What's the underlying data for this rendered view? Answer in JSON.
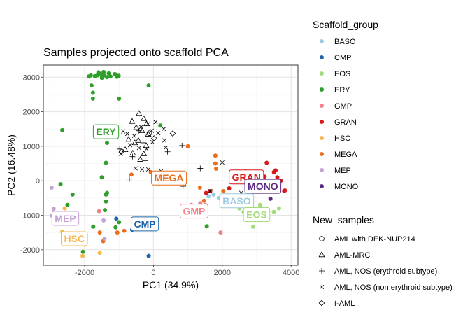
{
  "chart_data": {
    "type": "scatter",
    "title": "Samples projected onto scaffold PCA",
    "xlabel": "PC1 (34.9%)",
    "ylabel": "PC2 (16.48%)",
    "xlim": [
      -3200,
      4200
    ],
    "ylim": [
      -2450,
      3350
    ],
    "xticks": [
      -2000,
      0,
      2000,
      4000
    ],
    "yticks": [
      -2000,
      -1000,
      0,
      1000,
      2000,
      3000
    ],
    "xtick_labels": [
      "-2000",
      "0",
      "2000",
      "4000"
    ],
    "ytick_labels": [
      "-2000",
      "-1000",
      "0",
      "1000",
      "2000",
      "3000"
    ],
    "grid": true,
    "legend_placement": "right",
    "scaffold_legend_title": "Scaffold_group",
    "scaffold_groups": [
      {
        "name": "BASO",
        "color": "#9ecae1",
        "points": [
          [
            1600,
            -450
          ],
          [
            1750,
            -400
          ],
          [
            1900,
            -500
          ],
          [
            2050,
            -550
          ],
          [
            2200,
            -600
          ],
          [
            2600,
            -500
          ]
        ]
      },
      {
        "name": "CMP",
        "color": "#1f64a8",
        "points": [
          [
            -1080,
            -1100
          ],
          [
            -620,
            -1420
          ],
          [
            -140,
            -2180
          ],
          [
            -330,
            -1300
          ]
        ]
      },
      {
        "name": "EOS",
        "color": "#a5dc7a",
        "points": [
          [
            2500,
            -800
          ],
          [
            2620,
            -900
          ],
          [
            2900,
            -1330
          ],
          [
            3100,
            -700
          ],
          [
            3300,
            -850
          ],
          [
            3650,
            -800
          ],
          [
            3500,
            -900
          ]
        ]
      },
      {
        "name": "ERY",
        "color": "#2f9e2b",
        "points": [
          [
            -1880,
            3020
          ],
          [
            -1820,
            3050
          ],
          [
            -1700,
            3030
          ],
          [
            -1620,
            3060
          ],
          [
            -1500,
            3050
          ],
          [
            -1350,
            3000
          ],
          [
            -1250,
            3020
          ],
          [
            -1120,
            3090
          ],
          [
            -1060,
            3010
          ],
          [
            -1010,
            3040
          ],
          [
            -1300,
            3110
          ],
          [
            -1600,
            3140
          ],
          [
            -1450,
            3150
          ],
          [
            -1550,
            3090
          ],
          [
            -1430,
            3050
          ],
          [
            -1500,
            2980
          ],
          [
            -1800,
            2760
          ],
          [
            -1760,
            2550
          ],
          [
            -1760,
            2380
          ],
          [
            -1000,
            2380
          ],
          [
            -140,
            2760
          ],
          [
            -2650,
            1470
          ],
          [
            -1400,
            1300
          ],
          [
            -1350,
            1100
          ],
          [
            -1380,
            520
          ],
          [
            -1500,
            100
          ],
          [
            -1350,
            -350
          ],
          [
            -1380,
            -400
          ],
          [
            -1380,
            -600
          ],
          [
            -1410,
            -850
          ],
          [
            -2700,
            -100
          ],
          [
            -2350,
            -400
          ],
          [
            -2500,
            -700
          ],
          [
            -2650,
            -950
          ],
          [
            -1750,
            -1330
          ],
          [
            -2050,
            -2060
          ],
          [
            -2000,
            -1850
          ],
          [
            -1100,
            -1350
          ],
          [
            -1000,
            -1200
          ],
          [
            1550,
            -1320
          ],
          [
            200,
            1600
          ]
        ]
      },
      {
        "name": "GMP",
        "color": "#f2808a",
        "points": [
          [
            1360,
            -650
          ],
          [
            1500,
            -700
          ],
          [
            1950,
            -1500
          ],
          [
            -1580,
            -880
          ],
          [
            1100,
            -700
          ]
        ]
      },
      {
        "name": "GRAN",
        "color": "#d7191c",
        "points": [
          [
            1530,
            -350
          ],
          [
            1650,
            -300
          ],
          [
            2200,
            -220
          ],
          [
            3230,
            120
          ],
          [
            3290,
            520
          ],
          [
            3500,
            250
          ],
          [
            3600,
            100
          ],
          [
            3700,
            0
          ],
          [
            3820,
            -280
          ],
          [
            3450,
            -250
          ],
          [
            3250,
            -150
          ],
          [
            2900,
            -100
          ],
          [
            3800,
            -300
          ],
          [
            3550,
            300
          ]
        ]
      },
      {
        "name": "HSC",
        "color": "#f7b750",
        "points": [
          [
            -2580,
            -800
          ],
          [
            -2800,
            -930
          ],
          [
            -2360,
            -1150
          ],
          [
            -2450,
            -1520
          ],
          [
            -2650,
            -1480
          ],
          [
            -1560,
            -2090
          ],
          [
            -2060,
            -2180
          ],
          [
            -2360,
            -1730
          ]
        ]
      },
      {
        "name": "MEGA",
        "color": "#ec6e1c",
        "points": [
          [
            -640,
            180
          ],
          [
            -80,
            250
          ],
          [
            430,
            160
          ],
          [
            1000,
            1000
          ],
          [
            1800,
            730
          ],
          [
            1800,
            500
          ],
          [
            1820,
            350
          ],
          [
            1350,
            -200
          ],
          [
            -1560,
            -1500
          ],
          [
            -1460,
            -1750
          ],
          [
            -1050,
            -1500
          ],
          [
            -500,
            -1100
          ],
          [
            -850,
            -1450
          ],
          [
            1470,
            -580
          ],
          [
            2030,
            -300
          ]
        ]
      },
      {
        "name": "MEP",
        "color": "#c4a2d5",
        "points": [
          [
            -2900,
            -810
          ],
          [
            -2950,
            -1010
          ],
          [
            -2960,
            -200
          ],
          [
            -1420,
            -1680
          ],
          [
            -1450,
            -1150
          ]
        ]
      },
      {
        "name": "MONO",
        "color": "#5b2b83",
        "points": [
          [
            3400,
            -520
          ],
          [
            2750,
            -100
          ]
        ]
      }
    ],
    "group_labels": [
      {
        "text": "ERY",
        "x": -1380,
        "y": 1420
      },
      {
        "text": "MEGA",
        "x": 450,
        "y": 80
      },
      {
        "text": "GRAN",
        "x": 2700,
        "y": 110
      },
      {
        "text": "MONO",
        "x": 3180,
        "y": -160
      },
      {
        "text": "BASO",
        "x": 2420,
        "y": -580
      },
      {
        "text": "GMP",
        "x": 1180,
        "y": -880
      },
      {
        "text": "EOS",
        "x": 3000,
        "y": -980
      },
      {
        "text": "MEP",
        "x": -2560,
        "y": -1090
      },
      {
        "text": "CMP",
        "x": -250,
        "y": -1250
      },
      {
        "text": "HSC",
        "x": -2300,
        "y": -1680
      }
    ],
    "samples_legend_title": "New_samples",
    "new_samples": [
      {
        "name": "AML with DEK-NUP214",
        "marker": "circle",
        "points": [
          [
            -120,
            1380
          ]
        ]
      },
      {
        "name": "AML-MRC",
        "marker": "triangle",
        "points": [
          [
            -420,
            1950
          ],
          [
            -280,
            1800
          ],
          [
            -620,
            1720
          ],
          [
            -200,
            1650
          ],
          [
            -500,
            1540
          ],
          [
            -330,
            1450
          ],
          [
            -150,
            1350
          ],
          [
            -720,
            1200
          ],
          [
            -440,
            1170
          ],
          [
            -210,
            1020
          ],
          [
            -820,
            900
          ],
          [
            -600,
            800
          ],
          [
            -280,
            780
          ],
          [
            -540,
            1100
          ],
          [
            -380,
            620
          ]
        ]
      },
      {
        "name": "AML, NOS (erythroid subtype)",
        "marker": "plus",
        "points": [
          [
            -700,
            50
          ],
          [
            -300,
            1100
          ],
          [
            -1180,
            1350
          ],
          [
            -420,
            1450
          ],
          [
            -980,
            920
          ],
          [
            -610,
            700
          ],
          [
            -240,
            580
          ],
          [
            410,
            840
          ],
          [
            830,
            1020
          ],
          [
            860,
            -160
          ],
          [
            1360,
            360
          ],
          [
            2680,
            250
          ]
        ]
      },
      {
        "name": "AML, NOS (non erythroid subtype)",
        "marker": "x",
        "points": [
          [
            -880,
            1430
          ],
          [
            -760,
            1360
          ],
          [
            -560,
            1300
          ],
          [
            -360,
            1560
          ],
          [
            -160,
            1640
          ],
          [
            60,
            1700
          ],
          [
            -50,
            1450
          ],
          [
            140,
            1380
          ],
          [
            300,
            1500
          ],
          [
            -680,
            1030
          ],
          [
            -420,
            950
          ],
          [
            -200,
            920
          ],
          [
            -30,
            1120
          ],
          [
            320,
            1170
          ],
          [
            360,
            960
          ],
          [
            -950,
            780
          ],
          [
            -330,
            330
          ],
          [
            -150,
            330
          ],
          [
            -520,
            360
          ],
          [
            220,
            280
          ],
          [
            680,
            200
          ],
          [
            900,
            -100
          ],
          [
            1650,
            -300
          ],
          [
            2550,
            -350
          ],
          [
            2000,
            530
          ],
          [
            3600,
            -250
          ]
        ]
      },
      {
        "name": "t-AML",
        "marker": "diamond",
        "points": [
          [
            560,
            1370
          ],
          [
            -920,
            850
          ],
          [
            20,
            1230
          ]
        ]
      }
    ]
  }
}
